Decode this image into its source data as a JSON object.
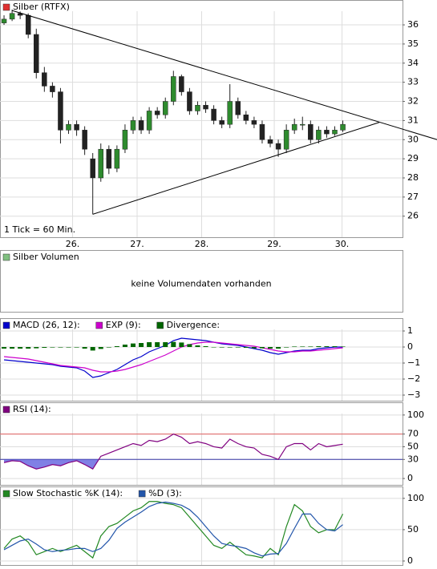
{
  "chart_data": [
    {
      "type": "candlestick",
      "title": "Silber (RTFX)",
      "color": "#e03030",
      "annotation": "1 Tick = 60 Min.",
      "up_color": "#2e8b2e",
      "down_color": "#222222",
      "xlim": [
        -0.5,
        49.4
      ],
      "xticks": [
        {
          "value": 8.5,
          "label": "26."
        },
        {
          "value": 16.5,
          "label": "27."
        },
        {
          "value": 24.5,
          "label": "28."
        },
        {
          "value": 33.5,
          "label": "29."
        },
        {
          "value": 41.9,
          "label": "30."
        }
      ],
      "ylim": [
        24.9,
        37.3
      ],
      "yticks": [
        26,
        27,
        28,
        29,
        30,
        31,
        32,
        33,
        34,
        35,
        36
      ],
      "grid": true,
      "open": [
        36.1,
        36.3,
        36.6,
        36.5,
        35.5,
        33.5,
        32.8,
        32.5,
        30.5,
        30.8,
        30.5,
        29.0,
        28.0,
        29.5,
        28.5,
        29.5,
        30.5,
        31.0,
        30.5,
        31.5,
        31.3,
        32.0,
        33.3,
        32.5,
        31.5,
        31.8,
        31.6,
        31.0,
        30.8,
        32.0,
        31.3,
        31.0,
        30.8,
        30.0,
        29.8,
        29.5,
        30.5,
        30.8,
        30.8,
        30.0,
        30.5,
        30.3,
        30.5
      ],
      "high": [
        36.5,
        36.8,
        36.7,
        36.6,
        35.8,
        33.8,
        33.0,
        32.7,
        31.0,
        31.0,
        30.7,
        29.3,
        29.8,
        29.7,
        29.7,
        30.8,
        31.2,
        31.2,
        31.7,
        31.7,
        32.2,
        33.6,
        33.4,
        32.7,
        32.0,
        32.0,
        31.8,
        31.2,
        32.9,
        32.2,
        31.5,
        31.2,
        31.0,
        30.2,
        30.0,
        30.8,
        31.1,
        31.2,
        31.0,
        30.7,
        30.7,
        30.7,
        31.0
      ],
      "low": [
        36.0,
        36.2,
        36.3,
        35.3,
        33.2,
        32.5,
        32.2,
        29.8,
        30.3,
        30.2,
        29.2,
        26.1,
        27.8,
        28.2,
        28.3,
        29.3,
        30.3,
        30.3,
        30.3,
        31.1,
        31.1,
        31.8,
        32.3,
        31.3,
        31.3,
        31.4,
        30.8,
        30.6,
        30.6,
        31.1,
        30.8,
        30.6,
        29.8,
        29.6,
        29.1,
        29.3,
        30.3,
        30.5,
        29.8,
        29.8,
        30.1,
        30.2,
        30.4
      ],
      "close": [
        36.3,
        36.6,
        36.5,
        35.5,
        33.5,
        32.8,
        32.5,
        30.5,
        30.8,
        30.5,
        29.5,
        28.0,
        29.5,
        28.5,
        29.5,
        30.5,
        31.0,
        30.5,
        31.5,
        31.3,
        32.0,
        33.3,
        32.5,
        31.5,
        31.8,
        31.6,
        31.0,
        30.8,
        32.0,
        31.3,
        31.0,
        30.8,
        30.0,
        29.8,
        29.5,
        30.5,
        30.8,
        30.8,
        30.0,
        30.5,
        30.3,
        30.5,
        30.8
      ],
      "trendlines": [
        {
          "x": [
            1.0,
            53.7
          ],
          "y": [
            36.75,
            30.0
          ]
        },
        {
          "x": [
            11.0,
            46.5
          ],
          "y": [
            26.1,
            30.9
          ]
        }
      ]
    },
    {
      "type": "empty",
      "title": "Silber Volumen",
      "color": "#80c080",
      "message": "keine Volumendaten vorhanden"
    },
    {
      "type": "indicator",
      "xlim": [
        -0.5,
        49.4
      ],
      "ylim": [
        -3.35,
        1.8
      ],
      "yticks": [
        1,
        0,
        {
          "value": -1,
          "label": "−1"
        },
        {
          "value": -2,
          "label": "−2"
        },
        {
          "value": -3,
          "label": "−3"
        }
      ],
      "series": [
        {
          "name": "MACD (26, 12):",
          "color": "#0000cc",
          "kind": "line",
          "values": [
            -0.8,
            -0.85,
            -0.9,
            -0.95,
            -1.0,
            -1.05,
            -1.1,
            -1.2,
            -1.25,
            -1.3,
            -1.5,
            -1.9,
            -1.8,
            -1.6,
            -1.4,
            -1.1,
            -0.8,
            -0.6,
            -0.3,
            -0.1,
            0.1,
            0.4,
            0.55,
            0.5,
            0.45,
            0.4,
            0.3,
            0.2,
            0.15,
            0.1,
            0.0,
            -0.1,
            -0.2,
            -0.35,
            -0.45,
            -0.35,
            -0.25,
            -0.2,
            -0.2,
            -0.1,
            -0.05,
            0.0,
            0.0
          ]
        },
        {
          "name": "EXP (9):",
          "color": "#cc00cc",
          "kind": "line",
          "values": [
            -0.6,
            -0.65,
            -0.7,
            -0.75,
            -0.85,
            -0.95,
            -1.05,
            -1.15,
            -1.2,
            -1.25,
            -1.3,
            -1.45,
            -1.55,
            -1.55,
            -1.5,
            -1.4,
            -1.25,
            -1.1,
            -0.9,
            -0.7,
            -0.5,
            -0.25,
            0.0,
            0.15,
            0.25,
            0.3,
            0.3,
            0.25,
            0.2,
            0.15,
            0.1,
            0.05,
            -0.05,
            -0.15,
            -0.25,
            -0.3,
            -0.3,
            -0.25,
            -0.25,
            -0.2,
            -0.15,
            -0.1,
            -0.05
          ]
        },
        {
          "name": "Divergence:",
          "color": "#006600",
          "kind": "bar",
          "values": [
            -0.1,
            -0.1,
            -0.1,
            -0.1,
            -0.08,
            -0.05,
            -0.03,
            -0.03,
            -0.03,
            -0.03,
            -0.1,
            -0.22,
            -0.12,
            -0.03,
            0.05,
            0.15,
            0.22,
            0.25,
            0.3,
            0.3,
            0.3,
            0.32,
            0.28,
            0.18,
            0.1,
            0.05,
            0.0,
            -0.03,
            -0.03,
            -0.03,
            -0.05,
            -0.08,
            -0.08,
            -0.1,
            -0.1,
            -0.03,
            0.03,
            0.03,
            0.03,
            0.05,
            0.05,
            0.05,
            0.03
          ]
        }
      ]
    },
    {
      "type": "indicator",
      "xlim": [
        -0.5,
        49.4
      ],
      "ylim": [
        -10,
        120
      ],
      "yticks": [
        0,
        30,
        50,
        70,
        100
      ],
      "reference_lines": [
        {
          "value": 70,
          "color": "#e06060"
        },
        {
          "value": 30,
          "color": "#3030a0"
        }
      ],
      "series": [
        {
          "name": "RSI (14):",
          "color": "#800080",
          "kind": "line",
          "values": [
            25,
            28,
            27,
            20,
            15,
            18,
            22,
            20,
            25,
            28,
            22,
            15,
            35,
            40,
            45,
            50,
            55,
            52,
            60,
            58,
            62,
            70,
            65,
            55,
            58,
            55,
            50,
            48,
            62,
            55,
            50,
            48,
            38,
            35,
            30,
            50,
            55,
            55,
            45,
            55,
            50,
            52,
            54
          ]
        }
      ]
    },
    {
      "type": "indicator",
      "xlim": [
        -0.5,
        49.4
      ],
      "ylim": [
        -6.4,
        119
      ],
      "yticks": [
        0,
        50,
        100
      ],
      "series": [
        {
          "name": "Slow Stochastic %K (14):",
          "color": "#228822",
          "kind": "line",
          "values": [
            20,
            35,
            40,
            30,
            10,
            15,
            20,
            15,
            20,
            25,
            15,
            5,
            40,
            55,
            60,
            70,
            80,
            85,
            95,
            95,
            92,
            90,
            85,
            70,
            55,
            40,
            25,
            20,
            30,
            20,
            10,
            8,
            5,
            20,
            10,
            55,
            90,
            80,
            55,
            45,
            50,
            50,
            75
          ]
        },
        {
          "name": "%D (3):",
          "color": "#2255aa",
          "kind": "line",
          "values": [
            18,
            25,
            32,
            35,
            27,
            18,
            15,
            17,
            18,
            20,
            20,
            15,
            20,
            33,
            52,
            62,
            70,
            78,
            87,
            92,
            94,
            92,
            89,
            82,
            70,
            55,
            40,
            28,
            25,
            23,
            20,
            13,
            8,
            11,
            12,
            28,
            52,
            75,
            75,
            60,
            50,
            48,
            58
          ]
        }
      ]
    }
  ]
}
